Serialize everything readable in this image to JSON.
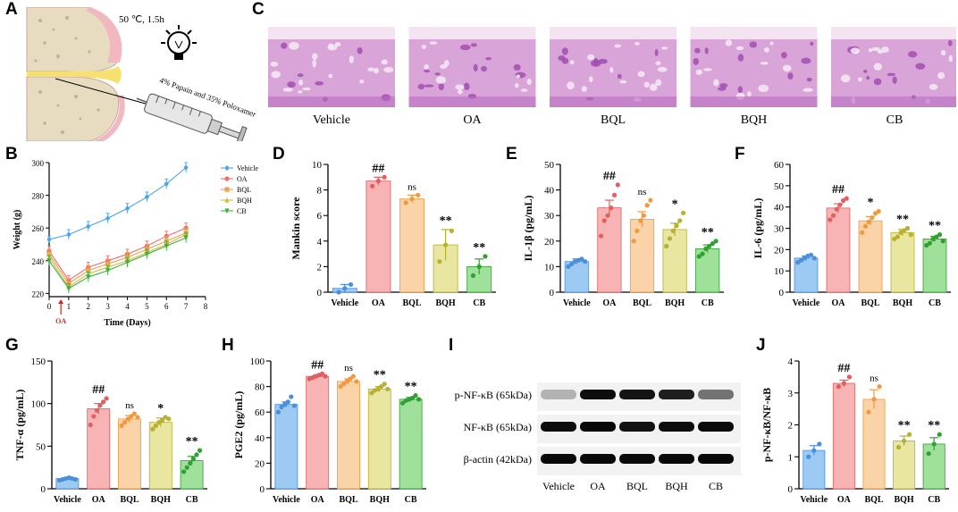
{
  "panel_labels": {
    "a": "A",
    "b": "B",
    "c": "C",
    "d": "D",
    "e": "E",
    "f": "F",
    "g": "G",
    "h": "H",
    "i": "I",
    "j": "J"
  },
  "schematic": {
    "condition": "50 ℃, 1.5h",
    "syringe_text": "4% Papain and 35% Poloxamer",
    "icons": [
      "knee-joint-icon",
      "light-bulb-icon",
      "syringe-icon"
    ]
  },
  "histology": {
    "labels": [
      "Vehicle",
      "OA",
      "BQL",
      "BQH",
      "CB"
    ]
  },
  "western": {
    "rows": [
      "p-NF-κB (65kDa)",
      "NF-κB (65kDa)",
      "β-actin (42kDa)"
    ],
    "lanes": [
      "Vehicle",
      "OA",
      "BQL",
      "BQH",
      "CB"
    ],
    "intensity": [
      [
        0.3,
        0.95,
        0.92,
        0.88,
        0.55
      ],
      [
        0.95,
        0.97,
        0.93,
        0.95,
        0.96
      ],
      [
        0.97,
        0.97,
        0.96,
        0.97,
        0.97
      ]
    ]
  },
  "chart_data": [
    {
      "id": "B",
      "type": "line",
      "xlabel": "Time (Days)",
      "ylabel": "Weight (g)",
      "xlim": [
        0,
        8
      ],
      "ylim": [
        218,
        300
      ],
      "xticks": [
        "0",
        "1",
        "2",
        "3",
        "4",
        "5",
        "6",
        "7",
        "8"
      ],
      "yticks": [
        "220",
        "240",
        "260",
        "280",
        "300"
      ],
      "annotation": "OA",
      "x": [
        0,
        1,
        2,
        3,
        4,
        5,
        6,
        7
      ],
      "series": [
        {
          "name": "Vehicle",
          "color": "#4aa3e8",
          "marker": "diamond",
          "values": [
            253,
            256,
            261,
            266,
            272,
            279,
            287,
            297
          ],
          "err": [
            2,
            3,
            3,
            3,
            3,
            3,
            3,
            3
          ]
        },
        {
          "name": "OA",
          "color": "#ee6c6c",
          "marker": "circle",
          "values": [
            246,
            228,
            236,
            240,
            244,
            249,
            255,
            260
          ],
          "err": [
            3,
            3,
            3,
            3,
            3,
            3,
            3,
            3
          ]
        },
        {
          "name": "BQL",
          "color": "#f0a050",
          "marker": "square",
          "values": [
            244,
            226,
            234,
            238,
            242,
            247,
            252,
            257
          ],
          "err": [
            3,
            3,
            3,
            3,
            3,
            3,
            3,
            3
          ]
        },
        {
          "name": "BQH",
          "color": "#c8c040",
          "marker": "triangle",
          "values": [
            242,
            224,
            232,
            236,
            240,
            245,
            250,
            256
          ],
          "err": [
            3,
            3,
            3,
            3,
            3,
            3,
            3,
            3
          ]
        },
        {
          "name": "CB",
          "color": "#40b040",
          "marker": "tri-down",
          "values": [
            240,
            223,
            230,
            234,
            239,
            244,
            249,
            254
          ],
          "err": [
            3,
            3,
            3,
            3,
            3,
            3,
            3,
            3
          ]
        }
      ],
      "legend": "top-right"
    },
    {
      "id": "D",
      "type": "bar",
      "ylabel": "Mankin score",
      "ylim": [
        0,
        10
      ],
      "yticks": [
        "0",
        "2",
        "4",
        "6",
        "8",
        "10"
      ],
      "categories": [
        "Vehicle",
        "OA",
        "BQL",
        "BQH",
        "CB"
      ],
      "values": [
        0.3,
        8.7,
        7.3,
        3.7,
        2.0
      ],
      "err": [
        0.3,
        0.3,
        0.3,
        1.2,
        0.6
      ],
      "points": [
        [
          0.0,
          0.3,
          0.6
        ],
        [
          8.3,
          8.7,
          9.0
        ],
        [
          7.0,
          7.3,
          7.6
        ],
        [
          2.4,
          3.7,
          4.8
        ],
        [
          1.3,
          2.0,
          2.8
        ]
      ],
      "sig": [
        "",
        "##",
        "ns",
        "**",
        "**"
      ]
    },
    {
      "id": "E",
      "type": "bar",
      "ylabel": "IL-1β (pg/mL)",
      "ylim": [
        0,
        50
      ],
      "yticks": [
        "0",
        "10",
        "20",
        "30",
        "40",
        "50"
      ],
      "categories": [
        "Vehicle",
        "OA",
        "BQL",
        "BQH",
        "CB"
      ],
      "values": [
        12,
        33,
        28.5,
        24.5,
        17
      ],
      "err": [
        1,
        3,
        3,
        2.5,
        1.5
      ],
      "points": [
        [
          10,
          11,
          12,
          12.5,
          13,
          12
        ],
        [
          22,
          28,
          30,
          33,
          38,
          42
        ],
        [
          20,
          24,
          28,
          30,
          34,
          36
        ],
        [
          18,
          21,
          24,
          26,
          28,
          31
        ],
        [
          14,
          15,
          17,
          18,
          19,
          20
        ]
      ],
      "sig": [
        "",
        "##",
        "ns",
        "*",
        "**"
      ]
    },
    {
      "id": "F",
      "type": "bar",
      "ylabel": "IL-6 (pg/mL)",
      "ylim": [
        0,
        60
      ],
      "yticks": [
        "0",
        "10",
        "20",
        "30",
        "40",
        "50",
        "60"
      ],
      "categories": [
        "Vehicle",
        "OA",
        "BQL",
        "BQH",
        "CB"
      ],
      "values": [
        16,
        39.5,
        33.5,
        28,
        25
      ],
      "err": [
        1,
        2,
        2,
        1.5,
        1.2
      ],
      "points": [
        [
          14,
          15,
          16,
          17,
          17.5,
          16
        ],
        [
          34,
          36,
          39,
          41,
          43,
          44
        ],
        [
          28,
          31,
          33,
          35,
          37,
          38
        ],
        [
          25,
          26,
          28,
          29,
          30,
          27
        ],
        [
          22,
          23,
          25,
          26,
          27,
          24
        ]
      ],
      "sig": [
        "",
        "##",
        "*",
        "**",
        "**"
      ]
    },
    {
      "id": "G",
      "type": "bar",
      "ylabel": "TNF-α (pg/mL)",
      "ylim": [
        0,
        150
      ],
      "yticks": [
        "0",
        "50",
        "100",
        "150"
      ],
      "categories": [
        "Vehicle",
        "OA",
        "BQL",
        "BQH",
        "CB"
      ],
      "values": [
        12,
        94,
        82,
        78,
        33
      ],
      "err": [
        1,
        6,
        4,
        5,
        5
      ],
      "points": [
        [
          10,
          11,
          12,
          13,
          12,
          11
        ],
        [
          75,
          85,
          92,
          98,
          102,
          106
        ],
        [
          74,
          78,
          82,
          85,
          88,
          84
        ],
        [
          70,
          74,
          78,
          80,
          84,
          82
        ],
        [
          20,
          25,
          30,
          35,
          40,
          45
        ]
      ],
      "sig": [
        "",
        "##",
        "ns",
        "*",
        "**"
      ]
    },
    {
      "id": "H",
      "type": "bar",
      "ylabel": "PGE2 (pg/mL)",
      "ylim": [
        0,
        100
      ],
      "yticks": [
        "0",
        "20",
        "40",
        "60",
        "80",
        "100"
      ],
      "categories": [
        "Vehicle",
        "OA",
        "BQL",
        "BQH",
        "CB"
      ],
      "values": [
        66,
        88,
        84,
        78,
        70
      ],
      "err": [
        2,
        1,
        2,
        2,
        1.5
      ],
      "points": [
        [
          60,
          64,
          66,
          68,
          72,
          65
        ],
        [
          86,
          87,
          88,
          89,
          90,
          88
        ],
        [
          80,
          82,
          84,
          86,
          88,
          84
        ],
        [
          75,
          77,
          78,
          80,
          82,
          78
        ],
        [
          67,
          69,
          70,
          71,
          73,
          70
        ]
      ],
      "sig": [
        "",
        "##",
        "ns",
        "**",
        "**"
      ]
    },
    {
      "id": "J",
      "type": "bar",
      "ylabel": "p-NF-κB/NF-κB",
      "ylim": [
        0,
        4
      ],
      "yticks": [
        "0",
        "1",
        "2",
        "3",
        "4"
      ],
      "categories": [
        "Vehicle",
        "OA",
        "BQL",
        "BQH",
        "CB"
      ],
      "values": [
        1.2,
        3.3,
        2.8,
        1.5,
        1.4
      ],
      "err": [
        0.15,
        0.1,
        0.3,
        0.15,
        0.2
      ],
      "points": [
        [
          1.0,
          1.2,
          1.4
        ],
        [
          3.2,
          3.3,
          3.5
        ],
        [
          2.4,
          2.8,
          3.2
        ],
        [
          1.3,
          1.5,
          1.7
        ],
        [
          1.1,
          1.4,
          1.7
        ]
      ],
      "sig": [
        "",
        "##",
        "ns",
        "**",
        "**"
      ]
    }
  ],
  "colors": {
    "Vehicle": {
      "fill": "#9dcaf3",
      "stroke": "#4a90d9"
    },
    "OA": {
      "fill": "#f8b4b4",
      "stroke": "#e06060"
    },
    "BQL": {
      "fill": "#fad3a8",
      "stroke": "#ee9a40"
    },
    "BQH": {
      "fill": "#e8e6a0",
      "stroke": "#b8b030"
    },
    "CB": {
      "fill": "#9fe09a",
      "stroke": "#30a030"
    }
  }
}
